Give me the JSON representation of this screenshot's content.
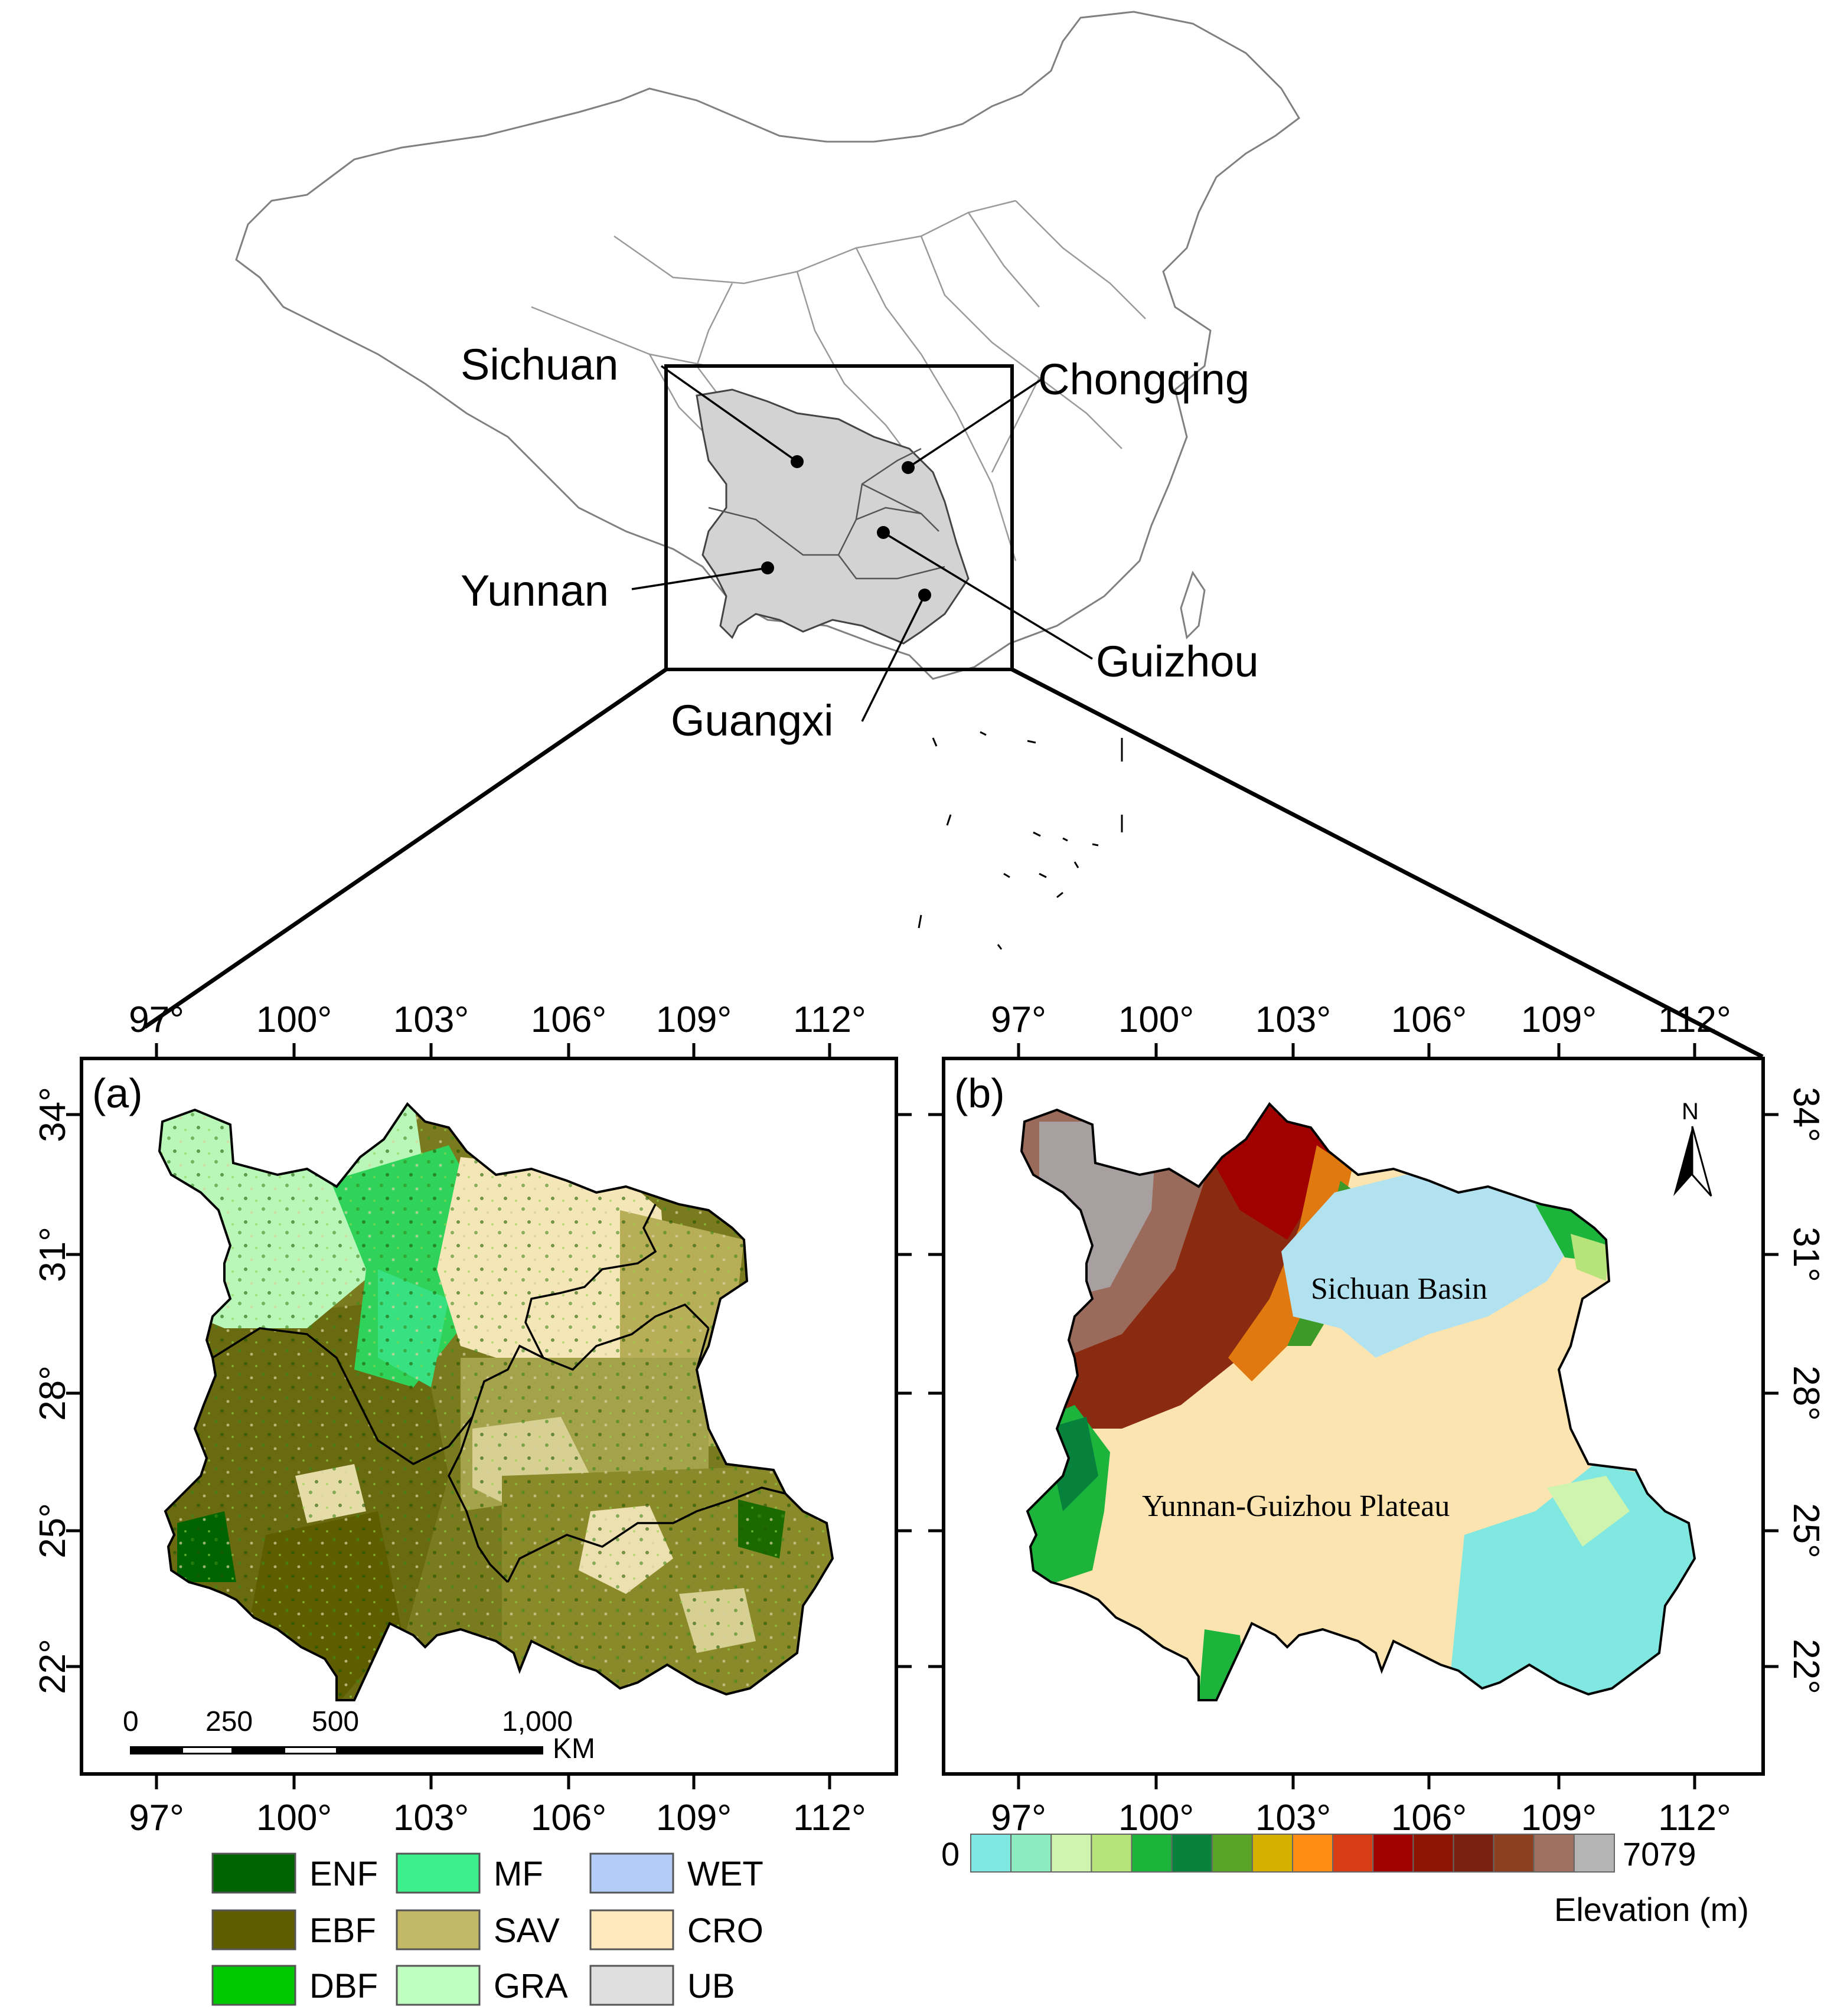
{
  "overview": {
    "provinces": [
      {
        "name": "Sichuan"
      },
      {
        "name": "Chongqing"
      },
      {
        "name": "Yunnan"
      },
      {
        "name": "Guizhou"
      },
      {
        "name": "Guangxi"
      }
    ]
  },
  "panel_a": {
    "label": "(a)"
  },
  "panel_b": {
    "label": "(b)",
    "north": "N",
    "regions": [
      "Sichuan Basin",
      "Yunnan-Guizhou Plateau"
    ]
  },
  "graticule": {
    "lon_ticks": [
      "97°",
      "100°",
      "103°",
      "106°",
      "109°",
      "112°"
    ],
    "lat_ticks": [
      "34°",
      "31°",
      "28°",
      "25°",
      "22°"
    ]
  },
  "scalebar": {
    "ticks": [
      "0",
      "250",
      "500",
      "1,000"
    ],
    "unit": "KM"
  },
  "landcover_legend": {
    "items": [
      {
        "code": "ENF",
        "color": "#006400"
      },
      {
        "code": "MF",
        "color": "#3CF08C"
      },
      {
        "code": "WET",
        "color": "#B4CDF8"
      },
      {
        "code": "EBF",
        "color": "#5E5E00"
      },
      {
        "code": "SAV",
        "color": "#C2B865"
      },
      {
        "code": "CRO",
        "color": "#FFE9BC"
      },
      {
        "code": "DBF",
        "color": "#00C800"
      },
      {
        "code": "GRA",
        "color": "#BFFFC0"
      },
      {
        "code": "UB",
        "color": "#DEDEDE"
      }
    ]
  },
  "elevation_legend": {
    "min": "0",
    "max": "7079",
    "title": "Elevation (m)",
    "colors": [
      "#7FE8E3",
      "#8CEBC0",
      "#CFF4B0",
      "#B6E37A",
      "#1DB43C",
      "#06823C",
      "#5AA428",
      "#D4B000",
      "#FF8C14",
      "#D83C14",
      "#A00000",
      "#8C1400",
      "#7A2010",
      "#8C4020",
      "#A07060",
      "#B4B4B4"
    ]
  }
}
